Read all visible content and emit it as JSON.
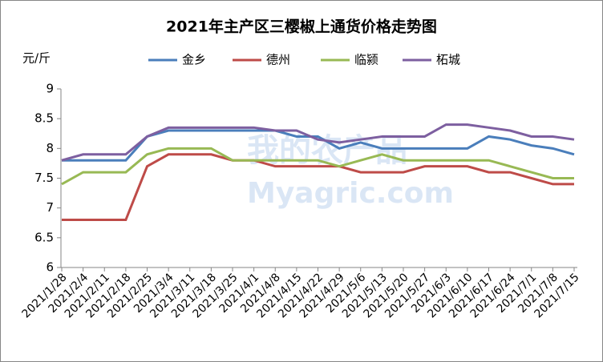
{
  "chart_data": {
    "type": "line",
    "title": "2021年主产区三樱椒上通货价格走势图",
    "y_label": "元/斤",
    "watermark": [
      "我的农产品",
      "Myagric.com"
    ],
    "categories": [
      "2021/1/28",
      "2021/2/4",
      "2021/2/11",
      "2021/2/18",
      "2021/2/25",
      "2021/3/4",
      "2021/3/11",
      "2021/3/18",
      "2021/3/25",
      "2021/4/1",
      "2021/4/8",
      "2021/4/15",
      "2021/4/22",
      "2021/4/29",
      "2021/5/6",
      "2021/5/13",
      "2021/5/20",
      "2021/5/27",
      "2021/6/3",
      "2021/6/10",
      "2021/6/17",
      "2021/6/24",
      "2021/7/1",
      "2021/7/8",
      "2021/7/15"
    ],
    "series": [
      {
        "name": "金乡",
        "color": "#4a7ebb",
        "values": [
          7.8,
          7.8,
          7.8,
          7.8,
          8.2,
          8.3,
          8.3,
          8.3,
          8.3,
          8.3,
          8.3,
          8.2,
          8.2,
          8.0,
          8.1,
          8.0,
          8.0,
          8.0,
          8.0,
          8.0,
          8.2,
          8.15,
          8.05,
          8.0,
          7.9
        ]
      },
      {
        "name": "德州",
        "color": "#be4b48",
        "values": [
          6.8,
          6.8,
          6.8,
          6.8,
          7.7,
          7.9,
          7.9,
          7.9,
          7.8,
          7.8,
          7.7,
          7.7,
          7.7,
          7.7,
          7.6,
          7.6,
          7.6,
          7.7,
          7.7,
          7.7,
          7.6,
          7.6,
          7.5,
          7.4,
          7.4
        ]
      },
      {
        "name": "临颍",
        "color": "#98b954",
        "values": [
          7.4,
          7.6,
          7.6,
          7.6,
          7.9,
          8.0,
          8.0,
          8.0,
          7.8,
          7.8,
          7.8,
          7.8,
          7.8,
          7.7,
          7.8,
          7.9,
          7.8,
          7.8,
          7.8,
          7.8,
          7.8,
          7.7,
          7.6,
          7.5,
          7.5
        ]
      },
      {
        "name": "柘城",
        "color": "#7d5fa0",
        "values": [
          7.8,
          7.9,
          7.9,
          7.9,
          8.2,
          8.35,
          8.35,
          8.35,
          8.35,
          8.35,
          8.3,
          8.3,
          8.15,
          8.1,
          8.15,
          8.2,
          8.2,
          8.2,
          8.4,
          8.4,
          8.35,
          8.3,
          8.2,
          8.2,
          8.15
        ]
      }
    ],
    "ylim": [
      6,
      9
    ],
    "yticks": [
      6,
      6.5,
      7,
      7.5,
      8,
      8.5,
      9
    ],
    "grid": false
  }
}
